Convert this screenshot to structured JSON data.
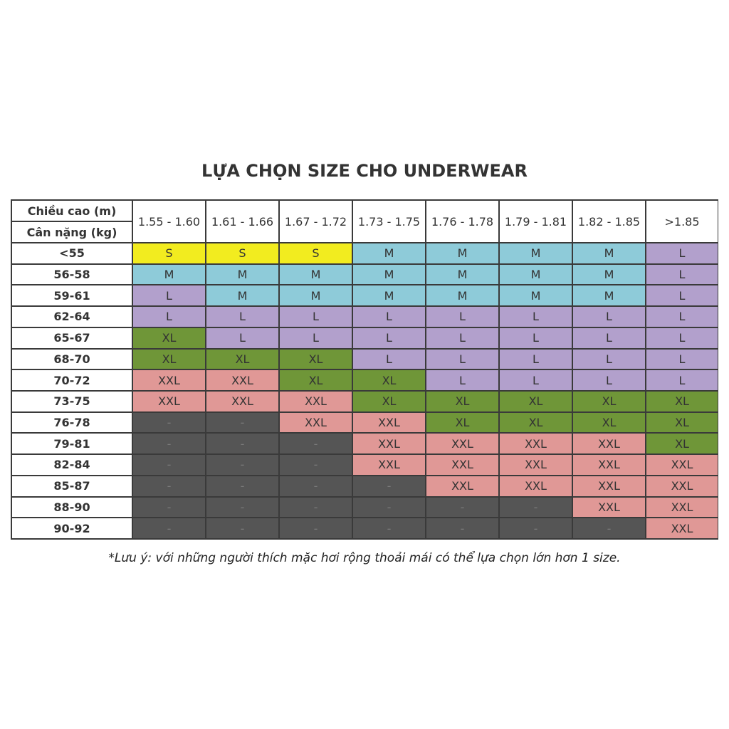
{
  "title": "LỰA CHỌN SIZE CHO UNDERWEAR",
  "corner": {
    "height_label": "Chiều cao (m)",
    "weight_label": "Cân nặng (kg)"
  },
  "columns": [
    "1.55 - 1.60",
    "1.61 - 1.66",
    "1.67 - 1.72",
    "1.73 - 1.75",
    "1.76 - 1.78",
    "1.79 - 1.81",
    "1.82 - 1.85",
    ">1.85"
  ],
  "rows": [
    {
      "label": "<55",
      "cells": [
        "S",
        "S",
        "S",
        "M",
        "M",
        "M",
        "M",
        "L"
      ]
    },
    {
      "label": "56-58",
      "cells": [
        "M",
        "M",
        "M",
        "M",
        "M",
        "M",
        "M",
        "L"
      ]
    },
    {
      "label": "59-61",
      "cells": [
        "L",
        "M",
        "M",
        "M",
        "M",
        "M",
        "M",
        "L"
      ]
    },
    {
      "label": "62-64",
      "cells": [
        "L",
        "L",
        "L",
        "L",
        "L",
        "L",
        "L",
        "L"
      ]
    },
    {
      "label": "65-67",
      "cells": [
        "XL",
        "L",
        "L",
        "L",
        "L",
        "L",
        "L",
        "L"
      ]
    },
    {
      "label": "68-70",
      "cells": [
        "XL",
        "XL",
        "XL",
        "L",
        "L",
        "L",
        "L",
        "L"
      ]
    },
    {
      "label": "70-72",
      "cells": [
        "XXL",
        "XXL",
        "XL",
        "XL",
        "L",
        "L",
        "L",
        "L"
      ]
    },
    {
      "label": "73-75",
      "cells": [
        "XXL",
        "XXL",
        "XXL",
        "XL",
        "XL",
        "XL",
        "XL",
        "XL"
      ]
    },
    {
      "label": "76-78",
      "cells": [
        "-",
        "-",
        "XXL",
        "XXL",
        "XL",
        "XL",
        "XL",
        "XL"
      ]
    },
    {
      "label": "79-81",
      "cells": [
        "-",
        "-",
        "-",
        "XXL",
        "XXL",
        "XXL",
        "XXL",
        "XL"
      ]
    },
    {
      "label": "82-84",
      "cells": [
        "-",
        "-",
        "-",
        "XXL",
        "XXL",
        "XXL",
        "XXL",
        "XXL"
      ]
    },
    {
      "label": "85-87",
      "cells": [
        "-",
        "-",
        "-",
        "-",
        "XXL",
        "XXL",
        "XXL",
        "XXL"
      ]
    },
    {
      "label": "88-90",
      "cells": [
        "-",
        "-",
        "-",
        "-",
        "-",
        "-",
        "XXL",
        "XXL"
      ]
    },
    {
      "label": "90-92",
      "cells": [
        "-",
        "-",
        "-",
        "-",
        "-",
        "-",
        "-",
        "XXL"
      ]
    }
  ],
  "note": "*Lưu ý: với những người thích mặc hơi rộng thoải mái có thể lựa chọn lớn hơn 1 size."
}
